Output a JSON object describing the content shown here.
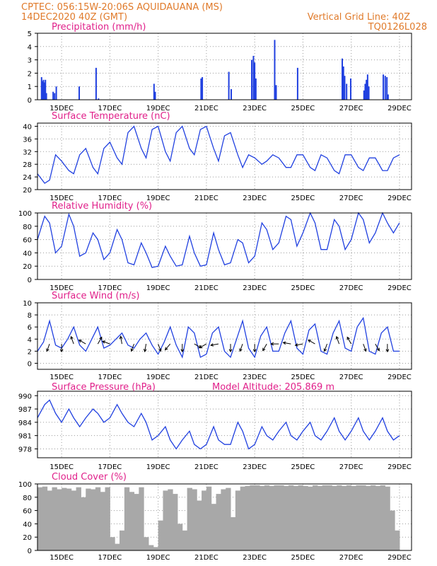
{
  "header": {
    "line1_left": "CPTEC:   056:15W-20:06S   AQUIDAUANA (MS)",
    "line2_left": "14DEC2020 40Z (GMT)",
    "line1_right": "Vertical Grid Line: 40Z",
    "line2_right": "TQ0126L028"
  },
  "x_labels": [
    "15DEC",
    "17DEC",
    "19DEC",
    "21DEC",
    "23DEC",
    "25DEC",
    "27DEC",
    "29DEC"
  ],
  "chart_data": [
    {
      "type": "bar",
      "title": "Precipitation  (mm/h)",
      "ylim": [
        0,
        5
      ],
      "yticks": [
        "0",
        "1",
        "2",
        "3",
        "4",
        "5"
      ],
      "x_unit": "days from 14DEC",
      "bars": [
        [
          0.14,
          1.7
        ],
        [
          0.18,
          1.4
        ],
        [
          0.22,
          1.5
        ],
        [
          0.26,
          1.3
        ],
        [
          0.3,
          1.5
        ],
        [
          0.34,
          0.5
        ],
        [
          0.62,
          0.6
        ],
        [
          0.68,
          0.5
        ],
        [
          0.75,
          1.0
        ],
        [
          1.7,
          1.0
        ],
        [
          2.4,
          2.4
        ],
        [
          2.5,
          0.1
        ],
        [
          4.8,
          1.2
        ],
        [
          4.85,
          0.6
        ],
        [
          6.75,
          1.6
        ],
        [
          6.8,
          1.7
        ],
        [
          7.9,
          2.1
        ],
        [
          8.0,
          0.8
        ],
        [
          8.85,
          3.0
        ],
        [
          8.92,
          3.3
        ],
        [
          8.97,
          2.8
        ],
        [
          9.02,
          1.6
        ],
        [
          9.8,
          4.5
        ],
        [
          9.86,
          1.1
        ],
        [
          10.75,
          2.4
        ],
        [
          12.6,
          3.1
        ],
        [
          12.65,
          2.5
        ],
        [
          12.7,
          1.8
        ],
        [
          12.78,
          1.2
        ],
        [
          12.95,
          1.6
        ],
        [
          13.5,
          0.7
        ],
        [
          13.55,
          1.2
        ],
        [
          13.6,
          1.5
        ],
        [
          13.65,
          1.9
        ],
        [
          13.7,
          1.0
        ],
        [
          14.3,
          1.9
        ],
        [
          14.38,
          1.8
        ],
        [
          14.45,
          1.7
        ],
        [
          14.5,
          0.4
        ]
      ]
    },
    {
      "type": "line",
      "title": "Surface Temperature (nC)",
      "ylim": [
        20,
        41
      ],
      "yticks": [
        "20",
        "24",
        "28",
        "32",
        "36",
        "40"
      ],
      "x": [
        0,
        0.3,
        0.5,
        0.75,
        1.0,
        1.3,
        1.5,
        1.75,
        2.0,
        2.3,
        2.5,
        2.75,
        3.0,
        3.3,
        3.5,
        3.75,
        4.0,
        4.3,
        4.5,
        4.75,
        5.0,
        5.3,
        5.5,
        5.75,
        6.0,
        6.3,
        6.5,
        6.75,
        7.0,
        7.3,
        7.5,
        7.75,
        8.0,
        8.3,
        8.5,
        8.75,
        9.0,
        9.3,
        9.5,
        9.75,
        10.0,
        10.3,
        10.5,
        10.75,
        11.0,
        11.3,
        11.5,
        11.75,
        12.0,
        12.3,
        12.5,
        12.75,
        13.0,
        13.3,
        13.5,
        13.75,
        14.0,
        14.3,
        14.5,
        14.75,
        15.0
      ],
      "values": [
        25,
        22,
        23,
        31,
        29,
        26,
        25,
        31,
        33,
        27,
        25,
        33,
        35,
        30,
        28,
        38,
        40,
        33,
        30,
        39,
        40,
        32,
        29,
        38,
        40,
        33,
        31,
        39,
        40,
        33,
        29,
        37,
        38,
        31,
        27,
        31,
        30,
        28,
        29,
        31,
        30,
        27,
        27,
        31,
        31,
        27,
        26,
        31,
        30,
        26,
        25,
        31,
        31,
        27,
        26,
        30,
        30,
        26,
        26,
        30,
        31
      ]
    },
    {
      "type": "line",
      "title": "Relative Humidity  (%)",
      "ylim": [
        0,
        100
      ],
      "yticks": [
        "0",
        "20",
        "40",
        "60",
        "80",
        "100"
      ],
      "x": [
        0,
        0.3,
        0.5,
        0.75,
        1.0,
        1.3,
        1.5,
        1.75,
        2.0,
        2.3,
        2.5,
        2.75,
        3.0,
        3.3,
        3.5,
        3.75,
        4.0,
        4.3,
        4.5,
        4.75,
        5.0,
        5.3,
        5.5,
        5.75,
        6.0,
        6.3,
        6.5,
        6.75,
        7.0,
        7.3,
        7.5,
        7.75,
        8.0,
        8.3,
        8.5,
        8.75,
        9.0,
        9.3,
        9.5,
        9.75,
        10.0,
        10.3,
        10.5,
        10.75,
        11.0,
        11.3,
        11.5,
        11.75,
        12.0,
        12.3,
        12.5,
        12.75,
        13.0,
        13.3,
        13.5,
        13.75,
        14.0,
        14.3,
        14.5,
        14.75,
        15.0
      ],
      "values": [
        60,
        95,
        85,
        40,
        50,
        98,
        80,
        35,
        40,
        70,
        60,
        30,
        40,
        75,
        60,
        25,
        22,
        55,
        40,
        18,
        20,
        50,
        35,
        20,
        22,
        65,
        40,
        20,
        22,
        70,
        45,
        22,
        25,
        60,
        55,
        25,
        35,
        85,
        75,
        45,
        55,
        95,
        90,
        50,
        70,
        100,
        85,
        45,
        45,
        90,
        80,
        45,
        60,
        100,
        90,
        55,
        70,
        100,
        85,
        70,
        85
      ]
    },
    {
      "type": "line",
      "title": "Surface Wind  (m/s)",
      "ylim": [
        -1,
        10
      ],
      "yticks": [
        "0",
        "2",
        "4",
        "6",
        "8",
        "10"
      ],
      "x": [
        0,
        0.25,
        0.5,
        0.75,
        1.0,
        1.25,
        1.5,
        1.75,
        2.0,
        2.25,
        2.5,
        2.75,
        3.0,
        3.25,
        3.5,
        3.75,
        4.0,
        4.25,
        4.5,
        4.75,
        5.0,
        5.25,
        5.5,
        5.75,
        6.0,
        6.25,
        6.5,
        6.75,
        7.0,
        7.25,
        7.5,
        7.75,
        8.0,
        8.25,
        8.5,
        8.75,
        9.0,
        9.25,
        9.5,
        9.75,
        10.0,
        10.25,
        10.5,
        10.75,
        11.0,
        11.25,
        11.5,
        11.75,
        12.0,
        12.25,
        12.5,
        12.75,
        13.0,
        13.25,
        13.5,
        13.75,
        14.0,
        14.25,
        14.5,
        14.75,
        15.0
      ],
      "values": [
        2,
        3.5,
        7,
        3,
        2.5,
        4,
        6,
        3,
        2,
        4,
        6,
        2.5,
        3,
        4,
        5,
        3,
        2.5,
        4,
        5,
        3,
        1.5,
        3.5,
        6,
        3,
        1,
        6,
        5,
        1,
        1.5,
        5,
        6,
        2,
        1,
        4,
        7,
        2.5,
        1,
        4.5,
        6,
        2,
        2,
        5,
        7,
        2.5,
        1.5,
        5.5,
        6.5,
        2,
        1.5,
        5,
        7,
        2.5,
        2,
        6,
        7.5,
        2,
        1.5,
        5,
        6,
        2,
        2
      ]
    },
    {
      "type": "line",
      "title": "Surface Pressure (hPa)",
      "annotation": "Model Altitude: 205.869  m",
      "ylim": [
        976,
        991
      ],
      "yticks": [
        "978",
        "981",
        "984",
        "987",
        "990"
      ],
      "x": [
        0,
        0.3,
        0.5,
        0.75,
        1.0,
        1.3,
        1.5,
        1.75,
        2.0,
        2.3,
        2.5,
        2.75,
        3.0,
        3.3,
        3.5,
        3.75,
        4.0,
        4.3,
        4.5,
        4.75,
        5.0,
        5.3,
        5.5,
        5.75,
        6.0,
        6.3,
        6.5,
        6.75,
        7.0,
        7.3,
        7.5,
        7.75,
        8.0,
        8.3,
        8.5,
        8.75,
        9.0,
        9.3,
        9.5,
        9.75,
        10.0,
        10.3,
        10.5,
        10.75,
        11.0,
        11.3,
        11.5,
        11.75,
        12.0,
        12.3,
        12.5,
        12.75,
        13.0,
        13.3,
        13.5,
        13.75,
        14.0,
        14.3,
        14.5,
        14.75,
        15.0
      ],
      "values": [
        985,
        988,
        989,
        986,
        984,
        987,
        985,
        983,
        985,
        987,
        986,
        984,
        985,
        988,
        986,
        984,
        983,
        986,
        984,
        980,
        981,
        983,
        980,
        978,
        980,
        982,
        979,
        978,
        979,
        983,
        980,
        979,
        979,
        984,
        982,
        978,
        979,
        983,
        981,
        980,
        982,
        984,
        981,
        980,
        982,
        984,
        981,
        980,
        982,
        985,
        982,
        980,
        982,
        985,
        982,
        980,
        982,
        985,
        982,
        980,
        981
      ]
    },
    {
      "type": "bar",
      "title": "Cloud Cover  (%)",
      "ylim": [
        0,
        100
      ],
      "yticks": [
        "0",
        "20",
        "40",
        "60",
        "80",
        "100"
      ],
      "x_unit": "days from 14DEC",
      "bars": [
        [
          0.1,
          95
        ],
        [
          0.3,
          96
        ],
        [
          0.5,
          90
        ],
        [
          0.7,
          95
        ],
        [
          0.9,
          92
        ],
        [
          1.1,
          94
        ],
        [
          1.3,
          93
        ],
        [
          1.5,
          90
        ],
        [
          1.7,
          95
        ],
        [
          1.9,
          80
        ],
        [
          2.1,
          93
        ],
        [
          2.3,
          92
        ],
        [
          2.5,
          95
        ],
        [
          2.7,
          88
        ],
        [
          2.9,
          95
        ],
        [
          3.1,
          20
        ],
        [
          3.3,
          10
        ],
        [
          3.5,
          30
        ],
        [
          3.7,
          95
        ],
        [
          3.9,
          88
        ],
        [
          4.1,
          85
        ],
        [
          4.3,
          95
        ],
        [
          4.5,
          20
        ],
        [
          4.7,
          8
        ],
        [
          4.9,
          5
        ],
        [
          5.1,
          45
        ],
        [
          5.3,
          90
        ],
        [
          5.5,
          92
        ],
        [
          5.7,
          85
        ],
        [
          5.9,
          40
        ],
        [
          6.1,
          30
        ],
        [
          6.3,
          94
        ],
        [
          6.5,
          92
        ],
        [
          6.7,
          75
        ],
        [
          6.9,
          90
        ],
        [
          7.1,
          96
        ],
        [
          7.3,
          70
        ],
        [
          7.5,
          85
        ],
        [
          7.7,
          92
        ],
        [
          7.9,
          94
        ],
        [
          8.1,
          50
        ],
        [
          8.3,
          90
        ],
        [
          8.5,
          96
        ],
        [
          8.7,
          97
        ],
        [
          8.9,
          98
        ],
        [
          9.1,
          98
        ],
        [
          9.3,
          97
        ],
        [
          9.5,
          98
        ],
        [
          9.7,
          97
        ],
        [
          9.9,
          98
        ],
        [
          10.1,
          98
        ],
        [
          10.3,
          97
        ],
        [
          10.5,
          98
        ],
        [
          10.7,
          97
        ],
        [
          10.9,
          98
        ],
        [
          11.1,
          97
        ],
        [
          11.3,
          96
        ],
        [
          11.5,
          98
        ],
        [
          11.7,
          97
        ],
        [
          11.9,
          98
        ],
        [
          12.1,
          98
        ],
        [
          12.3,
          97
        ],
        [
          12.5,
          98
        ],
        [
          12.7,
          97
        ],
        [
          12.9,
          98
        ],
        [
          13.1,
          97
        ],
        [
          13.3,
          98
        ],
        [
          13.5,
          98
        ],
        [
          13.7,
          97
        ],
        [
          13.9,
          98
        ],
        [
          14.1,
          97
        ],
        [
          14.3,
          98
        ],
        [
          14.5,
          96
        ],
        [
          14.7,
          60
        ],
        [
          14.9,
          30
        ]
      ]
    }
  ],
  "wind_arrows": [
    [
      0.5,
      3.2,
      200
    ],
    [
      1.0,
      3.2,
      180
    ],
    [
      1.5,
      3.2,
      340
    ],
    [
      2.0,
      3.2,
      300
    ],
    [
      2.5,
      3.2,
      30
    ],
    [
      3.0,
      3.2,
      290
    ],
    [
      3.5,
      3.2,
      350
    ],
    [
      4.0,
      3.2,
      200
    ],
    [
      4.5,
      3.2,
      190
    ],
    [
      5.0,
      3.2,
      160
    ],
    [
      5.5,
      3.2,
      220
    ],
    [
      6.0,
      3.2,
      180
    ],
    [
      6.5,
      3.2,
      120
    ],
    [
      7.0,
      3.2,
      240
    ],
    [
      7.5,
      3.2,
      260
    ],
    [
      8.0,
      3.2,
      180
    ],
    [
      8.5,
      3.2,
      200
    ],
    [
      9.0,
      3.2,
      180
    ],
    [
      9.5,
      3.2,
      210
    ],
    [
      10.0,
      3.2,
      270
    ],
    [
      10.5,
      3.2,
      280
    ],
    [
      11.0,
      3.2,
      260
    ],
    [
      11.5,
      3.2,
      300
    ],
    [
      12.0,
      3.2,
      200
    ],
    [
      12.5,
      3.2,
      340
    ],
    [
      13.0,
      3.2,
      330
    ],
    [
      13.5,
      3.2,
      160
    ],
    [
      14.0,
      3.2,
      150
    ],
    [
      14.5,
      3.2,
      180
    ]
  ]
}
